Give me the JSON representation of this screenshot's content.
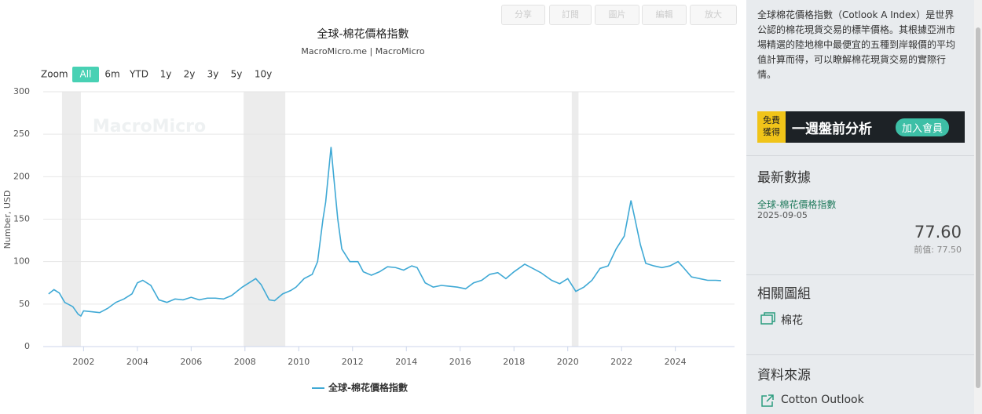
{
  "toolbar": [
    "分享",
    "訂閱",
    "圖片",
    "編輯",
    "放大"
  ],
  "chart_data": {
    "type": "line",
    "title": "全球-棉花價格指數",
    "subtitle": "MacroMicro.me | MacroMicro",
    "watermark": "MacroMicro",
    "zoom_label": "Zoom",
    "zoom_options": [
      "All",
      "6m",
      "YTD",
      "1y",
      "2y",
      "3y",
      "5y",
      "10y"
    ],
    "zoom_active": 0,
    "y_label": "Number, USD",
    "x": [
      2000.7,
      2000.9,
      2001.1,
      2001.3,
      2001.6,
      2001.8,
      2001.9,
      2002.0,
      2002.3,
      2002.6,
      2002.9,
      2003.2,
      2003.5,
      2003.8,
      2004.0,
      2004.2,
      2004.5,
      2004.8,
      2005.1,
      2005.4,
      2005.7,
      2006.0,
      2006.3,
      2006.6,
      2006.9,
      2007.2,
      2007.5,
      2007.9,
      2008.2,
      2008.4,
      2008.6,
      2008.9,
      2009.1,
      2009.4,
      2009.7,
      2009.9,
      2010.2,
      2010.5,
      2010.7,
      2010.9,
      2011.0,
      2011.2,
      2011.3,
      2011.45,
      2011.6,
      2011.9,
      2012.2,
      2012.4,
      2012.7,
      2013.0,
      2013.3,
      2013.6,
      2013.9,
      2014.2,
      2014.4,
      2014.7,
      2015.0,
      2015.3,
      2015.6,
      2015.9,
      2016.2,
      2016.5,
      2016.8,
      2017.1,
      2017.4,
      2017.7,
      2018.0,
      2018.4,
      2018.7,
      2019.0,
      2019.4,
      2019.7,
      2020.0,
      2020.3,
      2020.6,
      2020.9,
      2021.2,
      2021.5,
      2021.8,
      2022.1,
      2022.35,
      2022.5,
      2022.7,
      2022.9,
      2023.2,
      2023.5,
      2023.8,
      2024.1,
      2024.3,
      2024.6,
      2024.9,
      2025.2,
      2025.5,
      2025.7
    ],
    "series": [
      {
        "name": "全球-棉花價格指數",
        "color": "#3fa9d5",
        "values": [
          62,
          67,
          63,
          52,
          47,
          38,
          36,
          42,
          41,
          40,
          45,
          52,
          56,
          62,
          75,
          78,
          72,
          55,
          52,
          56,
          55,
          58,
          55,
          57,
          57,
          56,
          60,
          70,
          76,
          80,
          73,
          55,
          54,
          62,
          66,
          70,
          80,
          85,
          100,
          150,
          170,
          235,
          200,
          150,
          115,
          100,
          100,
          88,
          84,
          88,
          94,
          93,
          90,
          95,
          93,
          75,
          70,
          72,
          71,
          70,
          68,
          75,
          78,
          85,
          87,
          80,
          88,
          97,
          92,
          87,
          78,
          74,
          80,
          65,
          70,
          78,
          92,
          95,
          115,
          130,
          172,
          150,
          120,
          98,
          95,
          93,
          95,
          100,
          93,
          82,
          80,
          78,
          78,
          77.6
        ]
      }
    ],
    "xlim": [
      2000.5,
      2026.2
    ],
    "ylim": [
      0,
      300
    ],
    "xticks": [
      2002,
      2004,
      2006,
      2008,
      2010,
      2012,
      2014,
      2016,
      2018,
      2020,
      2022,
      2024
    ],
    "yticks": [
      0,
      50,
      100,
      150,
      200,
      250,
      300
    ],
    "grid": true,
    "shaded_ranges": [
      [
        2001.2,
        2001.9
      ],
      [
        2007.95,
        2009.5
      ],
      [
        2020.15,
        2020.4
      ]
    ],
    "shade_color": "#ececec"
  },
  "sidebar": {
    "description": "全球棉花價格指數（Cotlook A Index）是世界公認的棉花現貨交易的標竿價格。其根據亞洲市場精選的陸地棉中最便宜的五種到岸報價的平均值計算而得，可以瞭解棉花現貨交易的實際行情。",
    "ad": {
      "badge": "免費獲得",
      "text": "一週盤前分析",
      "button": "加入會員"
    },
    "latest_heading": "最新數據",
    "latest_name": "全球-棉花價格指數",
    "latest_date": "2025-09-05",
    "latest_value": "77.60",
    "previous": "前值: 77.50",
    "related_heading": "相關圖組",
    "related_item": "棉花",
    "source_heading": "資料來源",
    "source_item": "Cotton Outlook"
  }
}
